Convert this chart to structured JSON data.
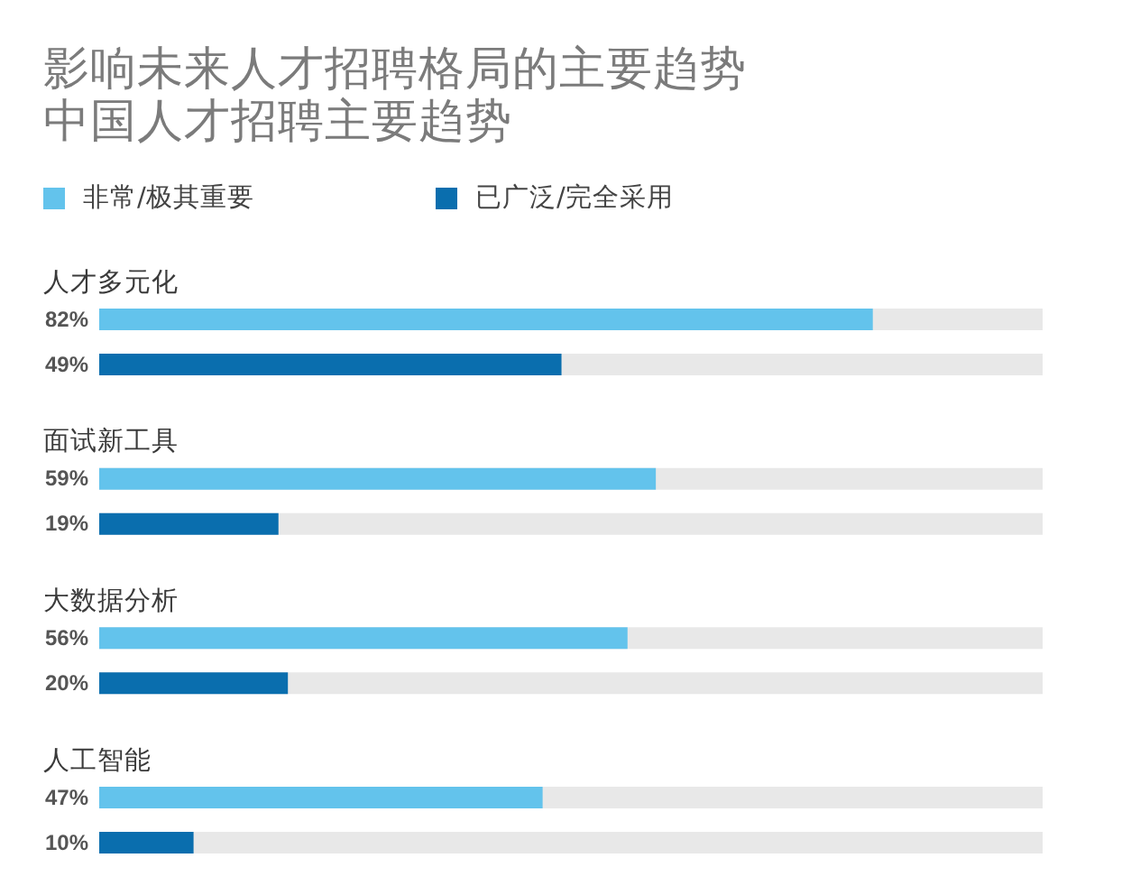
{
  "chart_data": {
    "type": "bar",
    "orientation": "horizontal",
    "title": "影响未来人才招聘格局的主要趋势",
    "subtitle": "中国人才招聘主要趋势",
    "categories": [
      "人才多元化",
      "面试新工具",
      "大数据分析",
      "人工智能"
    ],
    "series": [
      {
        "name": "非常/极其重要",
        "color": "#63c3ec",
        "values": [
          82,
          59,
          56,
          47
        ],
        "value_labels": [
          "82%",
          "59%",
          "56%",
          "47%"
        ]
      },
      {
        "name": "已广泛/完全采用",
        "color": "#0a6eae",
        "values": [
          49,
          19,
          20,
          10
        ],
        "value_labels": [
          "49%",
          "19%",
          "20%",
          "10%"
        ]
      }
    ],
    "xlim": [
      0,
      100
    ],
    "tick_labels": "y",
    "legend": "top left"
  }
}
